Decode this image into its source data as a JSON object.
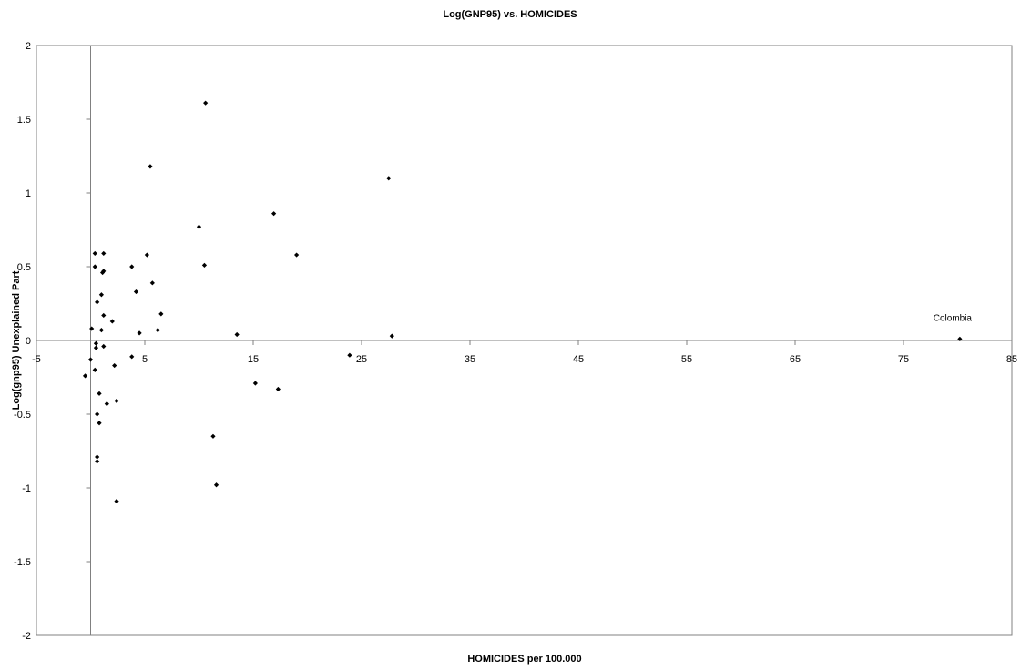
{
  "chart_data": {
    "type": "scatter",
    "title": "Log(GNP95) vs. HOMICIDES",
    "xlabel": "HOMICIDES per 100.000",
    "ylabel": "Log(gnp95) Unexplained Part",
    "xlim": [
      -5,
      85
    ],
    "ylim": [
      -2,
      2
    ],
    "xticks": [
      -5,
      5,
      15,
      25,
      35,
      45,
      55,
      65,
      75,
      85
    ],
    "yticks": [
      2,
      1.5,
      1,
      0.5,
      0,
      -0.5,
      -1,
      -1.5,
      -2
    ],
    "grid": false,
    "legend": "none",
    "marker_color": "#000000",
    "points": [
      [
        -0.5,
        -0.24
      ],
      [
        0.1,
        0.08
      ],
      [
        0.0,
        -0.13
      ],
      [
        0.4,
        0.59
      ],
      [
        0.4,
        0.5
      ],
      [
        0.4,
        -0.2
      ],
      [
        0.5,
        -0.02
      ],
      [
        0.5,
        -0.05
      ],
      [
        0.6,
        0.26
      ],
      [
        0.6,
        -0.5
      ],
      [
        0.6,
        -0.79
      ],
      [
        0.6,
        -0.82
      ],
      [
        0.8,
        -0.36
      ],
      [
        0.8,
        -0.56
      ],
      [
        1.0,
        0.07
      ],
      [
        1.0,
        0.31
      ],
      [
        1.1,
        0.46
      ],
      [
        1.2,
        0.47
      ],
      [
        1.2,
        0.59
      ],
      [
        1.2,
        0.17
      ],
      [
        1.2,
        -0.04
      ],
      [
        1.5,
        -0.43
      ],
      [
        2.0,
        0.13
      ],
      [
        2.2,
        -0.17
      ],
      [
        2.4,
        -0.41
      ],
      [
        2.4,
        -1.09
      ],
      [
        3.8,
        0.5
      ],
      [
        3.8,
        -0.11
      ],
      [
        4.2,
        0.33
      ],
      [
        4.5,
        0.05
      ],
      [
        5.2,
        0.58
      ],
      [
        5.5,
        1.18
      ],
      [
        5.7,
        0.39
      ],
      [
        6.2,
        0.07
      ],
      [
        6.5,
        0.18
      ],
      [
        10.0,
        0.77
      ],
      [
        10.5,
        0.51
      ],
      [
        10.6,
        1.61
      ],
      [
        11.3,
        -0.65
      ],
      [
        11.6,
        -0.98
      ],
      [
        13.5,
        0.04
      ],
      [
        15.2,
        -0.29
      ],
      [
        16.9,
        0.86
      ],
      [
        17.3,
        -0.33
      ],
      [
        19.0,
        0.58
      ],
      [
        23.9,
        -0.1
      ],
      [
        27.5,
        1.1
      ],
      [
        27.8,
        0.03
      ],
      [
        80.2,
        0.01
      ]
    ],
    "annotations": [
      {
        "text": "Colombia",
        "x": 80.2,
        "y": 0.01
      }
    ]
  }
}
